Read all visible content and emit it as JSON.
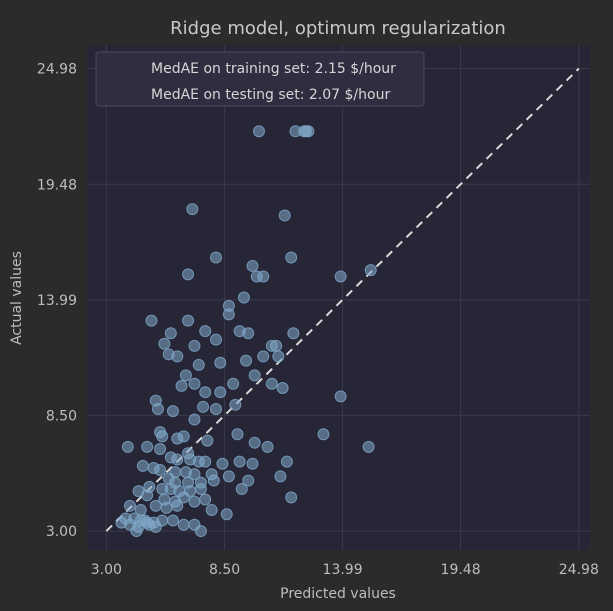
{
  "chart_data": {
    "type": "scatter",
    "title": "Ridge model, optimum regularization",
    "xlabel": "Predicted values",
    "ylabel": "Actual values",
    "xlim": [
      2.1,
      25.5
    ],
    "ylim": [
      2.1,
      26.1
    ],
    "xticks": [
      "3.00",
      "8.50",
      "13.99",
      "19.48",
      "24.98"
    ],
    "yticks": [
      "3.00",
      "8.50",
      "13.99",
      "19.48",
      "24.98"
    ],
    "grid": true,
    "legend_position": "top-left",
    "legend": [
      "MedAE on training set: 2.15 $/hour",
      "MedAE on testing set: 2.07 $/hour"
    ],
    "reference_line": {
      "style": "dashed",
      "from": [
        3.0,
        3.0
      ],
      "to": [
        24.98,
        24.98
      ]
    },
    "colors": {
      "background": "#2b2b2b",
      "plot_area": "#262636",
      "points": "#7fa8c9",
      "reference_line": "#d9d9d9",
      "grid": "#3a3a4c"
    },
    "points": [
      [
        10.1,
        22.0
      ],
      [
        11.8,
        22.0
      ],
      [
        12.2,
        22.0
      ],
      [
        12.4,
        22.0
      ],
      [
        12.3,
        22.0
      ],
      [
        7.0,
        18.3
      ],
      [
        11.3,
        18.0
      ],
      [
        11.6,
        16.0
      ],
      [
        8.1,
        16.0
      ],
      [
        9.8,
        15.6
      ],
      [
        10.0,
        15.1
      ],
      [
        10.3,
        15.1
      ],
      [
        6.8,
        15.2
      ],
      [
        13.9,
        15.1
      ],
      [
        15.3,
        15.4
      ],
      [
        9.4,
        14.1
      ],
      [
        8.7,
        13.7
      ],
      [
        5.1,
        13.0
      ],
      [
        6.8,
        13.0
      ],
      [
        8.7,
        13.3
      ],
      [
        6.0,
        12.4
      ],
      [
        7.6,
        12.5
      ],
      [
        9.2,
        12.5
      ],
      [
        9.6,
        12.4
      ],
      [
        11.7,
        12.4
      ],
      [
        5.7,
        11.9
      ],
      [
        7.1,
        11.8
      ],
      [
        8.1,
        12.1
      ],
      [
        6.3,
        11.3
      ],
      [
        10.3,
        11.3
      ],
      [
        10.7,
        11.8
      ],
      [
        10.9,
        11.8
      ],
      [
        11.0,
        11.3
      ],
      [
        5.9,
        11.4
      ],
      [
        7.3,
        10.9
      ],
      [
        8.3,
        11.0
      ],
      [
        9.5,
        11.1
      ],
      [
        6.7,
        10.4
      ],
      [
        7.1,
        10.0
      ],
      [
        6.5,
        9.9
      ],
      [
        8.9,
        10.0
      ],
      [
        9.9,
        10.4
      ],
      [
        10.7,
        10.0
      ],
      [
        11.2,
        9.8
      ],
      [
        5.3,
        9.2
      ],
      [
        7.6,
        9.6
      ],
      [
        8.3,
        9.6
      ],
      [
        13.9,
        9.4
      ],
      [
        5.4,
        8.8
      ],
      [
        6.1,
        8.7
      ],
      [
        7.5,
        8.9
      ],
      [
        8.1,
        8.8
      ],
      [
        9.0,
        9.0
      ],
      [
        7.1,
        8.3
      ],
      [
        5.5,
        7.7
      ],
      [
        5.6,
        7.5
      ],
      [
        6.3,
        7.4
      ],
      [
        6.6,
        7.5
      ],
      [
        7.7,
        7.3
      ],
      [
        9.1,
        7.6
      ],
      [
        13.1,
        7.6
      ],
      [
        4.0,
        7.0
      ],
      [
        4.9,
        7.0
      ],
      [
        5.5,
        6.9
      ],
      [
        6.8,
        6.7
      ],
      [
        6.0,
        6.5
      ],
      [
        6.3,
        6.4
      ],
      [
        6.9,
        6.4
      ],
      [
        7.3,
        6.3
      ],
      [
        7.6,
        6.3
      ],
      [
        8.4,
        6.2
      ],
      [
        9.2,
        6.3
      ],
      [
        9.9,
        7.2
      ],
      [
        10.5,
        7.0
      ],
      [
        15.2,
        7.0
      ],
      [
        4.7,
        6.1
      ],
      [
        5.2,
        6.0
      ],
      [
        5.5,
        5.9
      ],
      [
        6.2,
        5.8
      ],
      [
        6.7,
        5.8
      ],
      [
        7.1,
        5.7
      ],
      [
        7.9,
        5.7
      ],
      [
        9.8,
        6.2
      ],
      [
        11.4,
        6.3
      ],
      [
        5.9,
        5.5
      ],
      [
        6.2,
        5.3
      ],
      [
        6.8,
        5.3
      ],
      [
        7.4,
        5.3
      ],
      [
        8.0,
        5.4
      ],
      [
        8.7,
        5.6
      ],
      [
        9.6,
        5.4
      ],
      [
        11.1,
        5.6
      ],
      [
        4.5,
        4.9
      ],
      [
        5.0,
        5.1
      ],
      [
        5.6,
        5.0
      ],
      [
        6.0,
        5.0
      ],
      [
        6.4,
        4.9
      ],
      [
        6.9,
        4.9
      ],
      [
        7.4,
        5.0
      ],
      [
        9.3,
        5.0
      ],
      [
        4.9,
        4.7
      ],
      [
        5.7,
        4.5
      ],
      [
        6.2,
        4.4
      ],
      [
        6.6,
        4.6
      ],
      [
        7.1,
        4.4
      ],
      [
        7.6,
        4.5
      ],
      [
        11.6,
        4.6
      ],
      [
        4.1,
        4.2
      ],
      [
        4.6,
        4.0
      ],
      [
        5.3,
        4.2
      ],
      [
        5.8,
        4.1
      ],
      [
        6.3,
        4.2
      ],
      [
        7.9,
        4.0
      ],
      [
        8.6,
        3.8
      ],
      [
        3.9,
        3.6
      ],
      [
        4.3,
        3.6
      ],
      [
        4.8,
        3.5
      ],
      [
        5.2,
        3.4
      ],
      [
        5.6,
        3.5
      ],
      [
        6.1,
        3.5
      ],
      [
        6.6,
        3.3
      ],
      [
        7.1,
        3.3
      ],
      [
        3.7,
        3.4
      ],
      [
        4.1,
        3.3
      ],
      [
        4.5,
        3.2
      ],
      [
        4.9,
        3.4
      ],
      [
        5.3,
        3.2
      ],
      [
        7.4,
        3.0
      ],
      [
        4.4,
        3.0
      ],
      [
        4.6,
        3.5
      ],
      [
        5.0,
        3.3
      ]
    ]
  }
}
